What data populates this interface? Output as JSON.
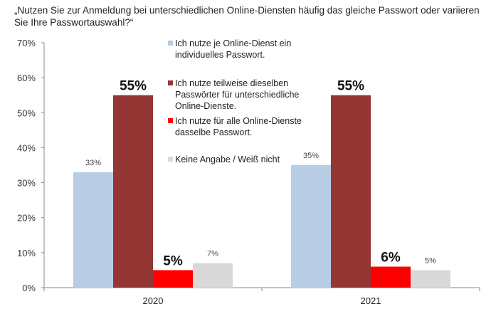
{
  "chart_data": {
    "type": "bar",
    "title": "„Nutzen Sie zur Anmeldung bei unterschiedlichen Online-Diensten häufig das gleiche Passwort oder variieren Sie Ihre Passwortauswahl?“",
    "categories": [
      "2020",
      "2021"
    ],
    "ylim": [
      0,
      70
    ],
    "yticks": [
      "0%",
      "10%",
      "20%",
      "30%",
      "40%",
      "50%",
      "60%",
      "70%"
    ],
    "ytick_values": [
      0,
      10,
      20,
      30,
      40,
      50,
      60,
      70
    ],
    "grid": false,
    "legend_placement": "top-center",
    "series": [
      {
        "name": "Ich nutze je Online-Dienst ein individuelles Passwort.",
        "color": "#b8cce4",
        "values": [
          33,
          35
        ],
        "labels": [
          "33%",
          "35%"
        ],
        "bold": false
      },
      {
        "name": "Ich nutze teilweise dieselben Passwörter für unterschiedliche Online-Dienste.",
        "color": "#943634",
        "values": [
          55,
          55
        ],
        "labels": [
          "55%",
          "55%"
        ],
        "bold": true
      },
      {
        "name": "Ich nutze für alle Online-Dienste dasselbe Passwort.",
        "color": "#ff0000",
        "values": [
          5,
          6
        ],
        "labels": [
          "5%",
          "6%"
        ],
        "bold": true
      },
      {
        "name": "Keine Angabe / Weiß nicht",
        "color": "#d9d9d9",
        "values": [
          7,
          5
        ],
        "labels": [
          "7%",
          "5%"
        ],
        "bold": false
      }
    ]
  }
}
